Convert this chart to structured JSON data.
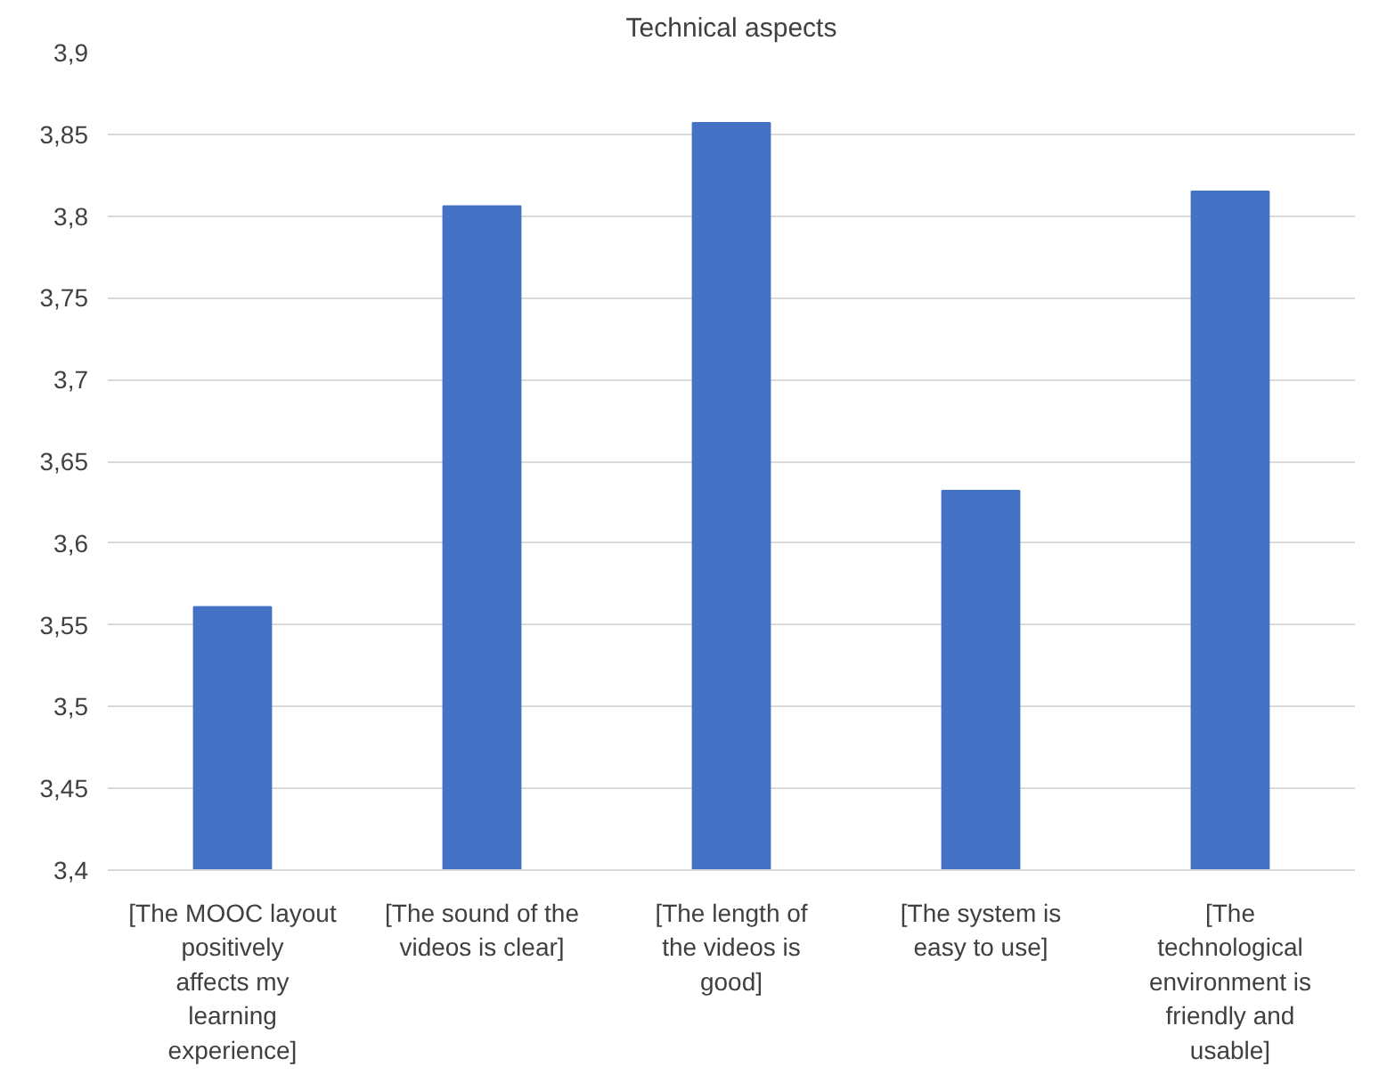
{
  "chart_data": {
    "type": "bar",
    "title": "Technical aspects",
    "categories": [
      "[The MOOC layout positively affects my learning experience]",
      "[The sound of the videos is clear]",
      "[The length of the videos is good]",
      "[The system is easy to use]",
      "[The technological environment is friendly and usable]"
    ],
    "values": [
      3.561,
      3.806,
      3.857,
      3.632,
      3.815
    ],
    "color": "#4472c4",
    "ylim": [
      3.4,
      3.9
    ],
    "yticks": [
      {
        "value": 3.4,
        "label": "3,4"
      },
      {
        "value": 3.45,
        "label": "3,45"
      },
      {
        "value": 3.5,
        "label": "3,5"
      },
      {
        "value": 3.55,
        "label": "3,55"
      },
      {
        "value": 3.6,
        "label": "3,6"
      },
      {
        "value": 3.65,
        "label": "3,65"
      },
      {
        "value": 3.7,
        "label": "3,7"
      },
      {
        "value": 3.75,
        "label": "3,75"
      },
      {
        "value": 3.8,
        "label": "3,8"
      },
      {
        "value": 3.85,
        "label": "3,85"
      },
      {
        "value": 3.9,
        "label": "3,9"
      }
    ],
    "grid": "y"
  }
}
